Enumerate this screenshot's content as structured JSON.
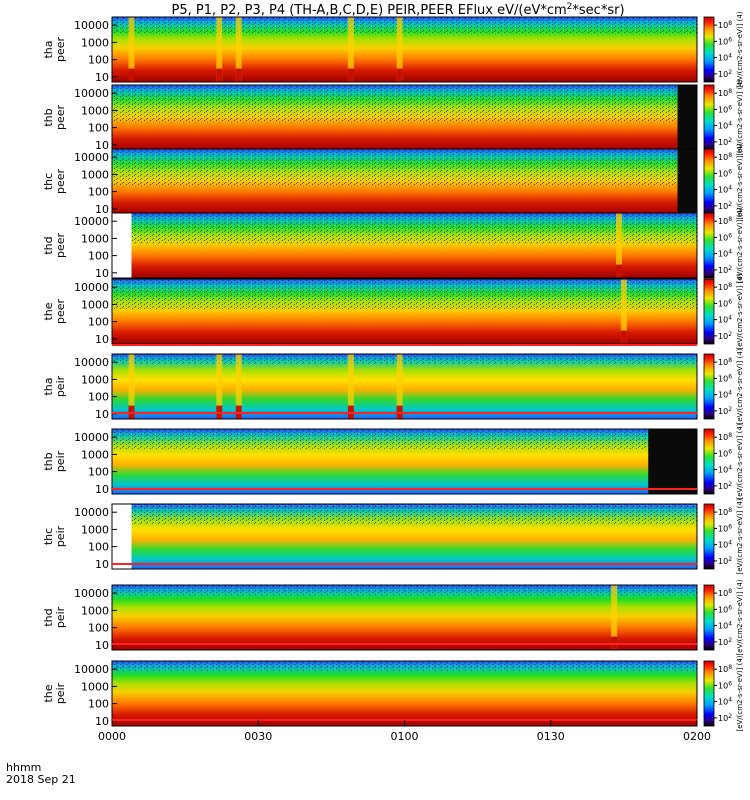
{
  "chart_data": {
    "type": "heatmap",
    "title_main": "P5, P1, P2, P3, P4 (TH-A,B,C,D,E) PEIR,PEER EFlux eV/(eV*cm",
    "title_sup": "2",
    "title_tail": "*sec*sr)",
    "x": {
      "ticks": [
        "0000",
        "0030",
        "0100",
        "0130",
        "0200"
      ],
      "range_minutes": [
        0,
        120
      ],
      "label_line1": "hhmm",
      "label_line2": "2018 Sep 21"
    },
    "y": {
      "scale": "log",
      "ticks": [
        "10",
        "100",
        "1000",
        "10000"
      ],
      "range_eV": [
        5,
        30000
      ]
    },
    "colorbar": {
      "scale": "log",
      "tick_exponents": [
        2,
        4,
        6,
        8
      ],
      "tick_base": "10",
      "label": "[eV/(cm2-s-sr-eV)] (4)"
    },
    "panels": [
      {
        "probe": "tha",
        "species": "peer",
        "line1": "tha",
        "line2": "peer",
        "level": "high",
        "band_eV": [
          8,
          3000
        ],
        "dropouts_min": [
          4,
          22,
          26,
          49,
          59
        ],
        "gap_end_min": 0
      },
      {
        "probe": "thb",
        "species": "peer",
        "line1": "thb",
        "line2": "peer",
        "level": "high",
        "band_eV": [
          8,
          200
        ],
        "dropouts_min": [],
        "gap_end_min": 116
      },
      {
        "probe": "thc",
        "species": "peer",
        "line1": "thc",
        "line2": "peer",
        "level": "high",
        "band_eV": [
          8,
          200
        ],
        "dropouts_min": [],
        "gap_end_min": 116
      },
      {
        "probe": "thd",
        "species": "peer",
        "line1": "thd",
        "line2": "peer",
        "level": "high",
        "band_eV": [
          8,
          500
        ],
        "dropouts_min": [
          104
        ],
        "gap_start_min": 4
      },
      {
        "probe": "the",
        "species": "peer",
        "line1": "the",
        "line2": "peer",
        "level": "high",
        "band_eV": [
          8,
          500
        ],
        "dropouts_min": [
          105
        ],
        "gap_end_min": 0
      },
      {
        "probe": "tha",
        "species": "peir",
        "line1": "tha",
        "line2": "peir",
        "level": "mid",
        "band_eV": [
          10,
          8000
        ],
        "dropouts_min": [
          4,
          22,
          26,
          49,
          59
        ],
        "gap_end_min": 0
      },
      {
        "probe": "thb",
        "species": "peir",
        "line1": "thb",
        "line2": "peir",
        "level": "mid",
        "band_eV": [
          100,
          2000
        ],
        "dropouts_min": [],
        "gap_end_min": 110
      },
      {
        "probe": "thc",
        "species": "peir",
        "line1": "thc",
        "line2": "peir",
        "level": "mid",
        "band_eV": [
          100,
          2000
        ],
        "dropouts_min": [],
        "gap_start_min": 4
      },
      {
        "probe": "thd",
        "species": "peir",
        "line1": "thd",
        "line2": "peir",
        "level": "high",
        "band_eV": [
          30,
          8000
        ],
        "dropouts_min": [
          103
        ],
        "gap_end_min": 0
      },
      {
        "probe": "the",
        "species": "peir",
        "line1": "the",
        "line2": "peir",
        "level": "high",
        "band_eV": [
          30,
          8000
        ],
        "dropouts_min": [],
        "gap_end_min": 0
      }
    ]
  }
}
